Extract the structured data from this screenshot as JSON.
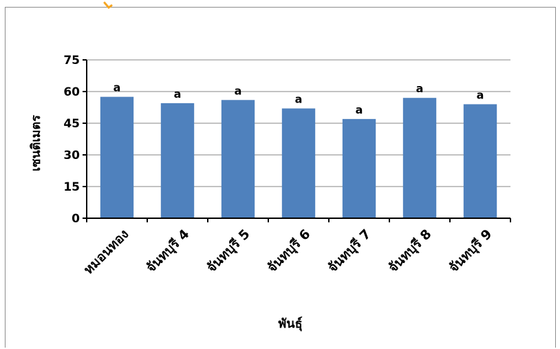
{
  "chart_data": {
    "type": "bar",
    "categories": [
      "หมอนทอง",
      "จันทบุรี 4",
      "จันทบุรี 5",
      "จันทบุรี 6",
      "จันทบุรี 7",
      "จันทบุรี 8",
      "จันทบุรี 9"
    ],
    "values": [
      57.5,
      54.5,
      56,
      52,
      47,
      57,
      54
    ],
    "data_labels": [
      "a",
      "a",
      "a",
      "a",
      "a",
      "a",
      "a"
    ],
    "xlabel": "พันธุ์",
    "ylabel": "เซนติเมตร",
    "ylim": [
      0,
      75
    ],
    "yticks": [
      "0",
      "15",
      "30",
      "45",
      "60",
      "75"
    ],
    "grid": true,
    "bar_color": "#4f81bd",
    "grid_color": "#868686"
  }
}
